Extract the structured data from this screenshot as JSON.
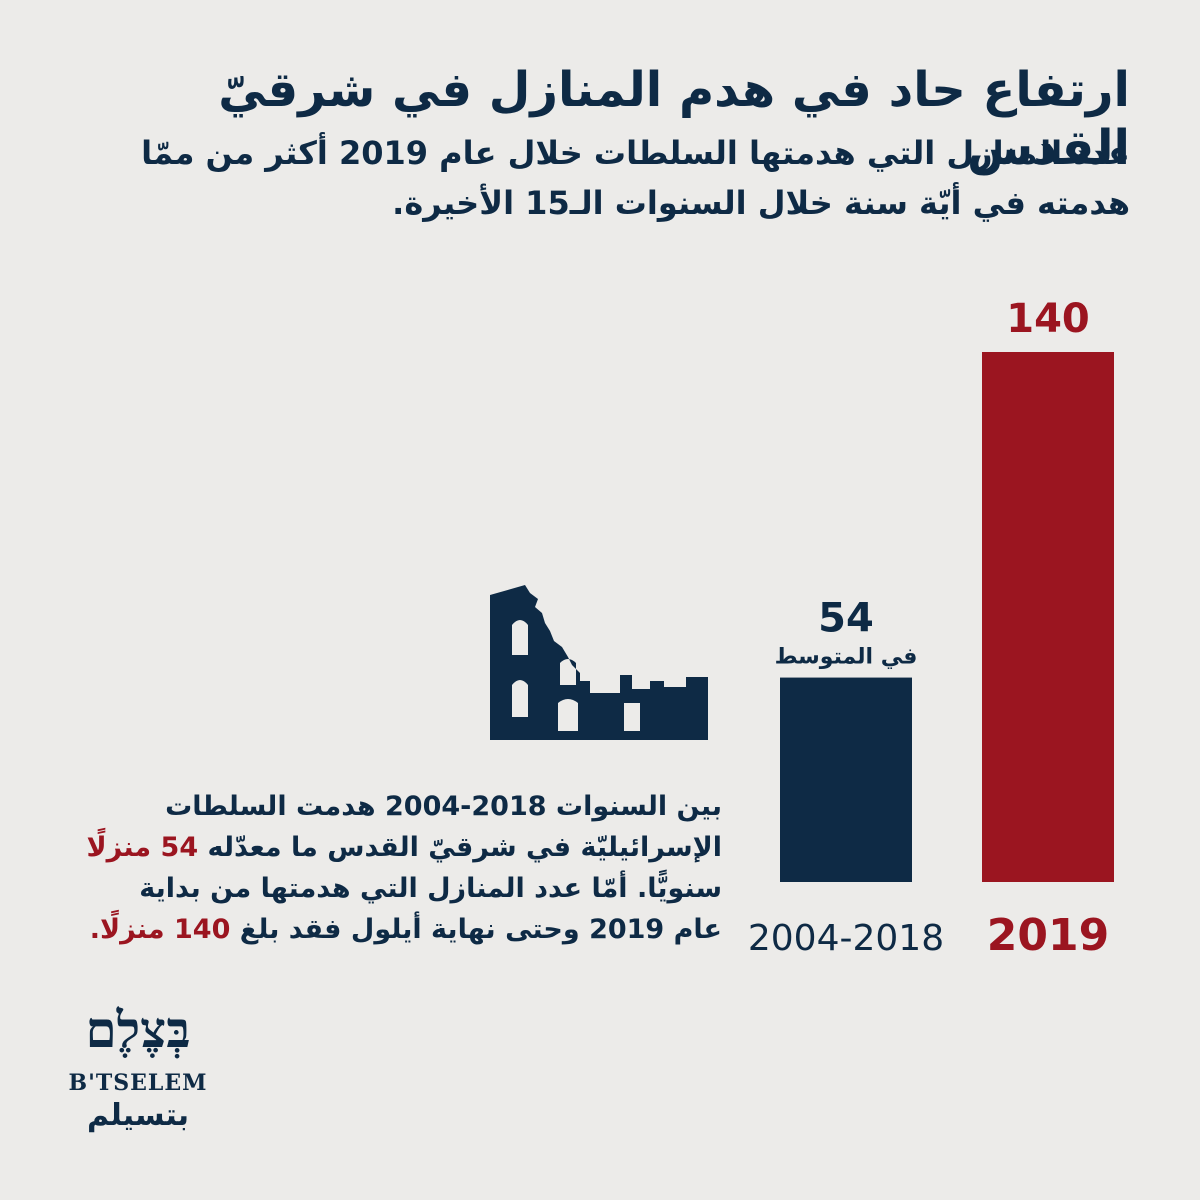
{
  "header": {
    "title": "ارتفاع حاد في هدم المنازل في شرقيّ القدس",
    "subtitle_line1": "عدد المنازل التي هدمتها السلطات خلال عام 2019 أكثر من ممّا",
    "subtitle_line2": "هدمته في أيّة سنة خلال السنوات الـ15 الأخيرة."
  },
  "chart_data": {
    "type": "bar",
    "categories": [
      "2004-2018",
      "2019"
    ],
    "values": [
      54,
      140
    ],
    "value_labels": [
      "54",
      "140"
    ],
    "bar_sublabels": [
      "في المتوسط",
      ""
    ],
    "colors": [
      "#0e2a45",
      "#9b1520"
    ],
    "label_colors": [
      "#0e2a45",
      "#9b1520"
    ],
    "ylim": [
      0,
      140
    ]
  },
  "note": {
    "line1": "بين السنوات 2018-2004 هدمت السلطات",
    "line2_pre": "الإسرائيليّة في شرقيّ القدس ما معدّله ",
    "line2_hl": "54 منزلًا",
    "line3": "سنويًّا. أمّا عدد المنازل التي هدمتها من بداية",
    "line4_pre": "عام 2019 وحتى نهاية أيلول فقد بلغ ",
    "line4_hl": "140 منزلًا."
  },
  "logo": {
    "hebrew": "בְּצֶלֶם",
    "latin": "B'TSELEM",
    "arabic": "بتسيلم"
  },
  "icons": {
    "illustration": "ruined-building-icon"
  }
}
